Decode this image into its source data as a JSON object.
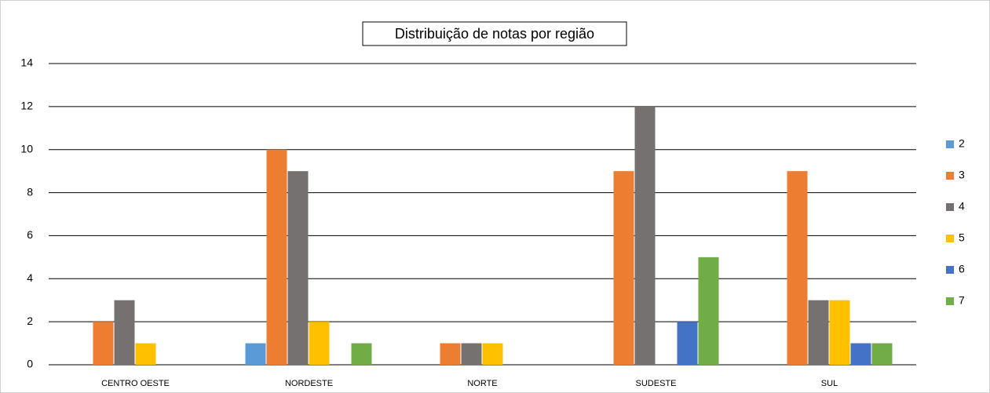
{
  "chart_data": {
    "type": "bar",
    "title": "Distribuição de notas por região",
    "categories": [
      "CENTRO OESTE",
      "NORDESTE",
      "NORTE",
      "SUDESTE",
      "SUL"
    ],
    "series": [
      {
        "name": "2",
        "color": "#5b9bd5",
        "values": [
          null,
          1,
          null,
          null,
          null
        ]
      },
      {
        "name": "3",
        "color": "#ed7d31",
        "values": [
          2,
          10,
          1,
          9,
          9
        ]
      },
      {
        "name": "4",
        "color": "#767171",
        "values": [
          3,
          9,
          1,
          12,
          3
        ]
      },
      {
        "name": "5",
        "color": "#ffc000",
        "values": [
          1,
          2,
          1,
          null,
          3
        ]
      },
      {
        "name": "6",
        "color": "#4472c4",
        "values": [
          null,
          null,
          null,
          2,
          1
        ]
      },
      {
        "name": "7",
        "color": "#70ad47",
        "values": [
          null,
          1,
          null,
          5,
          1
        ]
      }
    ],
    "ylim": [
      0,
      14
    ],
    "yticks": [
      0,
      2,
      4,
      6,
      8,
      10,
      12,
      14
    ],
    "grid": true,
    "legend": "right"
  }
}
